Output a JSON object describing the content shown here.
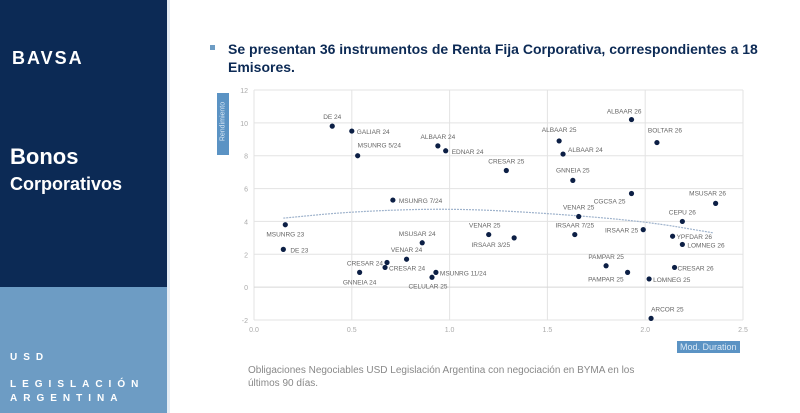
{
  "sidebar": {
    "logo": "BAVSA",
    "title_line1": "Bonos",
    "title_line2": "Corporativos",
    "currency": "USD",
    "legislation": "LEGISLACIÓN ARGENTINA",
    "colors": {
      "dark": "#0c2a55",
      "light": "#6d9cc4"
    }
  },
  "headline": "Se presentan 36 instrumentos de Renta Fija Corporativa, correspondientes a 18 Emisores.",
  "footnote": "Obligaciones Negociables USD Legislación Argentina con negociación en BYMA en los últimos 90 días.",
  "chart_data": {
    "type": "scatter",
    "xlabel": "Mod. Duration",
    "ylabel": "Rendimiento",
    "xlim": [
      0.0,
      2.5
    ],
    "ylim": [
      -2,
      12
    ],
    "xticks": [
      "0.0",
      "0.5",
      "1.0",
      "1.5",
      "2.0",
      "2.5"
    ],
    "yticks": [
      "-2",
      "0",
      "2",
      "4",
      "6",
      "8",
      "10",
      "12"
    ],
    "grid": true,
    "point_color": "#0c1f45",
    "trendline": {
      "type": "polynomial",
      "color": "#9fb3cc",
      "points": [
        [
          0.15,
          4.2
        ],
        [
          0.5,
          4.6
        ],
        [
          1.0,
          4.8
        ],
        [
          1.5,
          4.5
        ],
        [
          2.0,
          4.0
        ],
        [
          2.35,
          3.3
        ]
      ]
    },
    "points": [
      {
        "label": "DE 24",
        "x": 0.4,
        "y": 9.8
      },
      {
        "label": "GALIAR 24",
        "x": 0.5,
        "y": 9.5
      },
      {
        "label": "MSUNRG 5/24",
        "x": 0.53,
        "y": 8.0
      },
      {
        "label": "ALBAAR 24",
        "x": 0.94,
        "y": 8.6
      },
      {
        "label": "EDNAR 24",
        "x": 0.98,
        "y": 8.3
      },
      {
        "label": "CRESAR 25",
        "x": 1.29,
        "y": 7.1
      },
      {
        "label": "MSUNRG 7/24",
        "x": 0.71,
        "y": 5.3
      },
      {
        "label": "ALBAAR 26",
        "x": 1.93,
        "y": 10.2
      },
      {
        "label": "ALBAAR 25",
        "x": 1.56,
        "y": 8.9
      },
      {
        "label": "ALBAAR 24",
        "x": 1.58,
        "y": 8.1
      },
      {
        "label": "BOLTAR 26",
        "x": 2.06,
        "y": 8.8
      },
      {
        "label": "GNNEIA 25",
        "x": 1.63,
        "y": 6.5
      },
      {
        "label": "CGCSA 25",
        "x": 1.93,
        "y": 5.7
      },
      {
        "label": "MSUSAR 26",
        "x": 2.36,
        "y": 5.1
      },
      {
        "label": "VENAR 25",
        "x": 1.66,
        "y": 4.3
      },
      {
        "label": "CEPU 26",
        "x": 2.19,
        "y": 4.0
      },
      {
        "label": "IRSAAR 7/25",
        "x": 1.64,
        "y": 3.2
      },
      {
        "label": "IRSAAR 25",
        "x": 1.99,
        "y": 3.5
      },
      {
        "label": "YPFDAR 26",
        "x": 2.14,
        "y": 3.1
      },
      {
        "label": "LOMNEG 26",
        "x": 2.19,
        "y": 2.6
      },
      {
        "label": "PAMPAR 25",
        "x": 1.8,
        "y": 1.3
      },
      {
        "label": "PAMPAR 25",
        "x": 1.91,
        "y": 0.9
      },
      {
        "label": "LOMNEG 25",
        "x": 2.02,
        "y": 0.5
      },
      {
        "label": "CRESAR 26",
        "x": 2.15,
        "y": 1.2
      },
      {
        "label": "ARCOR 25",
        "x": 2.03,
        "y": -1.9
      },
      {
        "label": "IRSAAR 3/25",
        "x": 1.33,
        "y": 3.0
      },
      {
        "label": "MSUNRG 23",
        "x": 0.16,
        "y": 3.8
      },
      {
        "label": "DE 23",
        "x": 0.15,
        "y": 2.3
      },
      {
        "label": "VENAR 25",
        "x": 1.2,
        "y": 3.2
      },
      {
        "label": "MSUSAR 24",
        "x": 0.86,
        "y": 2.7
      },
      {
        "label": "VENAR 24",
        "x": 0.78,
        "y": 1.7
      },
      {
        "label": "CRESAR 24",
        "x": 0.68,
        "y": 1.5
      },
      {
        "label": "CRESAR 24",
        "x": 0.67,
        "y": 1.2
      },
      {
        "label": "GNNEIA 24",
        "x": 0.54,
        "y": 0.9
      },
      {
        "label": "MSUNRG 11/24",
        "x": 0.93,
        "y": 0.9
      },
      {
        "label": "CELULAR 25",
        "x": 0.91,
        "y": 0.6
      }
    ]
  }
}
